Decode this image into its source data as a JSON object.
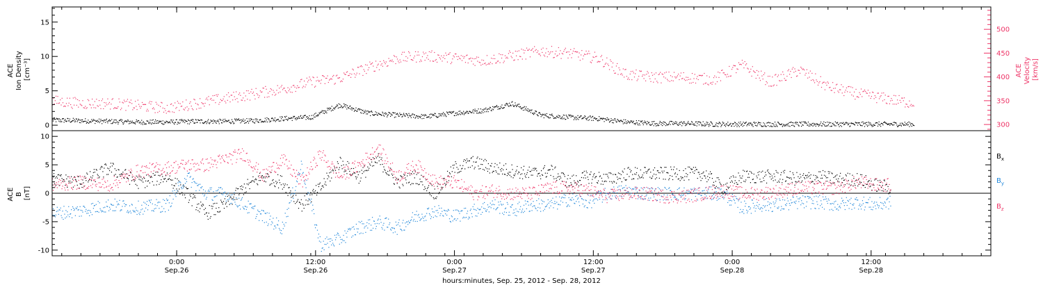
{
  "chart_data": [
    {
      "type": "scatter",
      "panel": "top",
      "ylabel_left": [
        "ACE",
        "Ion Density",
        "[cm⁻³]"
      ],
      "ylabel_right": [
        "ACE",
        "Velocity",
        "[km/s]"
      ],
      "ylim_left": [
        -0.8,
        17.2
      ],
      "ylim_right": [
        287,
        547
      ],
      "yticks_left": [
        0,
        5,
        10,
        15
      ],
      "yticks_right": [
        300,
        350,
        400,
        450,
        500
      ],
      "grid": false,
      "colors": {
        "density": "#000000",
        "velocity": "#ee3366"
      },
      "series": [
        {
          "name": "Ion Density",
          "axis": "left",
          "x_hours": [
            0,
            3,
            6,
            9,
            12,
            15,
            18,
            21,
            24,
            27,
            30,
            33,
            36,
            39,
            42,
            45,
            48,
            51,
            54,
            57,
            60,
            63,
            66,
            69,
            72,
            75,
            78,
            81,
            84,
            87,
            90
          ],
          "values": [
            0.8,
            0.7,
            0.6,
            0.5,
            0.5,
            0.6,
            0.6,
            0.7,
            1.0,
            1.2,
            3.0,
            1.8,
            1.5,
            1.3,
            1.8,
            2.2,
            3.2,
            1.5,
            1.2,
            1.0,
            0.5,
            0.3,
            0.3,
            0.2,
            0.2,
            0.2,
            0.2,
            0.2,
            0.2,
            0.2,
            0.2
          ]
        },
        {
          "name": "Velocity",
          "axis": "right",
          "x_hours": [
            0,
            3,
            6,
            9,
            12,
            15,
            18,
            21,
            24,
            27,
            30,
            33,
            36,
            39,
            42,
            45,
            48,
            51,
            54,
            57,
            60,
            63,
            66,
            69,
            72,
            75,
            78,
            81,
            84,
            87,
            90
          ],
          "values": [
            350,
            345,
            345,
            340,
            335,
            345,
            355,
            365,
            375,
            390,
            398,
            420,
            440,
            445,
            440,
            435,
            445,
            455,
            450,
            440,
            405,
            400,
            400,
            395,
            425,
            390,
            415,
            380,
            365,
            355,
            345
          ]
        }
      ]
    },
    {
      "type": "scatter",
      "panel": "bottom",
      "ylabel": [
        "ACE",
        "B",
        "[nT]"
      ],
      "ylim": [
        -11,
        11
      ],
      "yticks": [
        -10,
        -5,
        0,
        5,
        10
      ],
      "zero_line": true,
      "grid": false,
      "xlabel": "hours:minutes, Sep. 25, 2012 - Sep. 28, 2012",
      "xlim_hours": [
        0,
        98
      ],
      "xticks": [
        {
          "hour": 13,
          "time": "0:00",
          "date": "Sep.26"
        },
        {
          "hour": 27.5,
          "time": "12:00",
          "date": "Sep.26"
        },
        {
          "hour": 42,
          "time": "0:00",
          "date": "Sep.27"
        },
        {
          "hour": 56.5,
          "time": "12:00",
          "date": "Sep.27"
        },
        {
          "hour": 71,
          "time": "0:00",
          "date": "Sep.28"
        },
        {
          "hour": 85.5,
          "time": "12:00",
          "date": "Sep.28"
        }
      ],
      "series": [
        {
          "name": "Bx",
          "label_main": "B",
          "label_sub": "x",
          "color": "#000000",
          "x_hours": [
            0,
            3,
            6,
            9,
            12,
            14,
            16,
            18,
            20,
            22,
            24,
            26,
            28,
            30,
            32,
            34,
            36,
            38,
            40,
            42,
            44,
            46,
            48,
            50,
            52,
            54,
            56,
            58,
            60,
            62,
            64,
            66,
            68,
            70,
            72,
            74,
            76,
            78,
            80,
            82,
            84,
            86,
            87.5
          ],
          "values": [
            2.5,
            2.0,
            4.5,
            2.0,
            3.0,
            0.0,
            -3.5,
            -2.0,
            1.0,
            3.0,
            2.0,
            -2.0,
            1.0,
            5.5,
            3.0,
            6.0,
            2.0,
            3.0,
            0.0,
            4.5,
            5.5,
            4.5,
            4.0,
            3.5,
            4.0,
            2.0,
            3.0,
            2.5,
            3.5,
            3.5,
            3.5,
            3.5,
            3.5,
            1.0,
            3.0,
            3.0,
            3.0,
            2.5,
            3.0,
            2.5,
            2.5,
            1.5,
            1.0
          ]
        },
        {
          "name": "By",
          "label_main": "B",
          "label_sub": "y",
          "color": "#1f86d9",
          "x_hours": [
            0,
            3,
            6,
            9,
            12,
            14,
            16,
            18,
            20,
            22,
            24,
            26,
            28,
            30,
            32,
            34,
            36,
            38,
            40,
            42,
            44,
            46,
            48,
            50,
            52,
            54,
            56,
            58,
            60,
            62,
            64,
            66,
            68,
            70,
            72,
            74,
            76,
            78,
            80,
            82,
            84,
            86,
            87.5
          ],
          "values": [
            -3.5,
            -3.0,
            -2.0,
            -2.5,
            -2.0,
            3.0,
            0.0,
            0.0,
            -2.0,
            -4.0,
            -6.0,
            5.0,
            -9.0,
            -8.0,
            -6.0,
            -5.0,
            -6.0,
            -4.0,
            -3.0,
            -4.0,
            -3.0,
            -2.0,
            -3.0,
            -2.0,
            -2.0,
            -1.0,
            -1.5,
            0.0,
            0.5,
            0.0,
            0.0,
            0.0,
            0.0,
            0.0,
            -2.5,
            -2.0,
            -2.0,
            -1.5,
            -1.5,
            -2.0,
            -1.5,
            -2.0,
            -1.5
          ]
        },
        {
          "name": "Bz",
          "label_main": "B",
          "label_sub": "z",
          "color": "#ee3366",
          "x_hours": [
            0,
            3,
            6,
            9,
            12,
            14,
            16,
            18,
            20,
            22,
            24,
            26,
            28,
            30,
            32,
            34,
            36,
            38,
            40,
            42,
            44,
            46,
            48,
            50,
            52,
            54,
            56,
            58,
            60,
            62,
            64,
            66,
            68,
            70,
            72,
            74,
            76,
            78,
            80,
            82,
            84,
            86,
            87.5
          ],
          "values": [
            1.5,
            2.0,
            1.5,
            4.0,
            4.5,
            5.0,
            5.0,
            6.0,
            7.0,
            3.0,
            6.0,
            2.0,
            7.0,
            3.0,
            5.0,
            8.0,
            3.0,
            5.0,
            2.0,
            2.0,
            0.0,
            0.5,
            0.0,
            0.0,
            1.0,
            1.0,
            0.5,
            -0.5,
            0.0,
            0.0,
            -0.5,
            -0.5,
            0.0,
            0.5,
            0.0,
            0.0,
            0.5,
            1.0,
            1.0,
            1.0,
            2.0,
            1.5,
            1.5
          ]
        }
      ]
    }
  ]
}
